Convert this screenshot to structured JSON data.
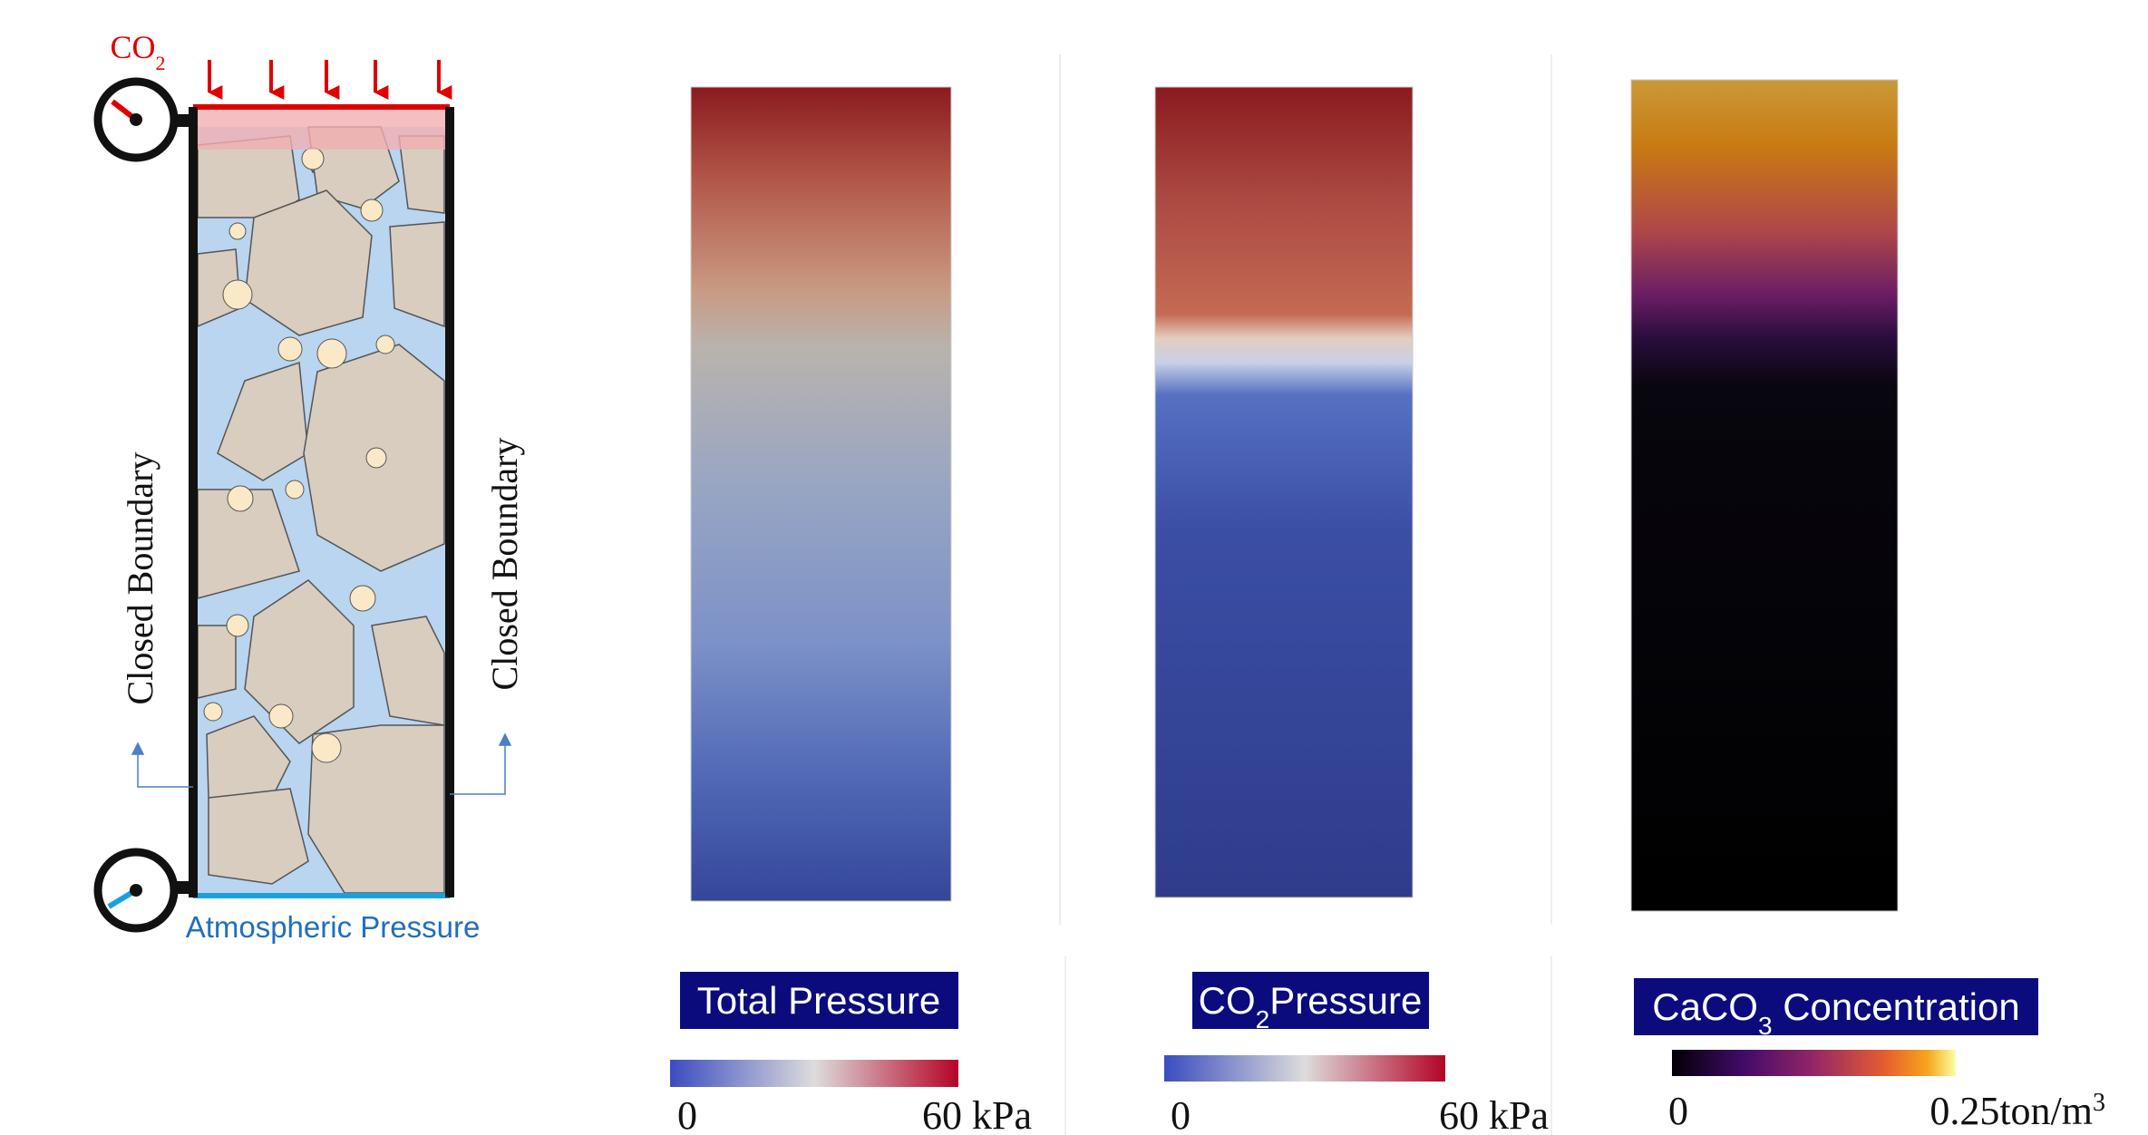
{
  "schematic": {
    "inlet_label": {
      "main": "CO",
      "sub": "2"
    },
    "left_label": "Closed Boundary",
    "right_label": "Closed Boundary",
    "outlet_label": "Atmospheric Pressure"
  },
  "panels": [
    {
      "title": {
        "main": "Total Pressure"
      },
      "colorbar": {
        "min_label": "0",
        "max_label": {
          "main": "60 kPa"
        }
      }
    },
    {
      "title": {
        "main": "CO",
        "sub": "2",
        "rest": "Pressure"
      },
      "colorbar": {
        "min_label": "0",
        "max_label": {
          "main": "60 kPa"
        }
      }
    },
    {
      "title": {
        "main": "CaCO",
        "sub": "3",
        "rest": " Concentration"
      },
      "colorbar": {
        "min_label": "0",
        "max_label": {
          "main": "0.25ton/m",
          "sup": "3"
        }
      }
    }
  ]
}
